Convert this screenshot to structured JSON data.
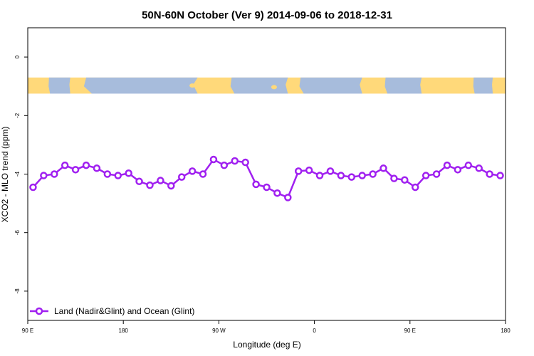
{
  "chart_data": {
    "type": "line",
    "title": "50N-60N October (Ver 9)   2014-09-06 to 2018-12-31",
    "xlabel": "Longitude (deg E)",
    "ylabel": "XCO2 - MLO trend (ppm)",
    "xlim": [
      90,
      540
    ],
    "ylim": [
      -9,
      1
    ],
    "x_ticks": [
      {
        "value": 90,
        "label": "90 E"
      },
      {
        "value": 180,
        "label": "180"
      },
      {
        "value": 270,
        "label": "90 W"
      },
      {
        "value": 360,
        "label": "0"
      },
      {
        "value": 450,
        "label": "90 E"
      },
      {
        "value": 540,
        "label": "180"
      }
    ],
    "y_ticks": [
      {
        "value": 0,
        "label": "0"
      },
      {
        "value": -2,
        "label": "-2"
      },
      {
        "value": -4,
        "label": "-4"
      },
      {
        "value": -6,
        "label": "-6"
      },
      {
        "value": -8,
        "label": "-8"
      }
    ],
    "grid": false,
    "legend_position": "bottom-left",
    "series": [
      {
        "name": "Land (Nadir&Glint) and Ocean (Glint)",
        "color": "#a020f0",
        "x": [
          95,
          105,
          115,
          125,
          135,
          145,
          155,
          165,
          175,
          185,
          195,
          205,
          215,
          225,
          235,
          245,
          255,
          265,
          275,
          285,
          295,
          305,
          315,
          325,
          335,
          345,
          355,
          365,
          375,
          385,
          395,
          405,
          415,
          425,
          435,
          445,
          455,
          465,
          475,
          485,
          495,
          505,
          515,
          525,
          535
        ],
        "y": [
          -4.45,
          -4.05,
          -4.0,
          -3.7,
          -3.85,
          -3.7,
          -3.8,
          -4.0,
          -4.05,
          -3.97,
          -4.25,
          -4.38,
          -4.22,
          -4.4,
          -4.1,
          -3.9,
          -4.0,
          -3.5,
          -3.7,
          -3.55,
          -3.6,
          -4.35,
          -4.45,
          -4.65,
          -4.8,
          -3.9,
          -3.87,
          -4.05,
          -3.9,
          -4.05,
          -4.1,
          -4.05,
          -4.0,
          -3.8,
          -4.15,
          -4.2,
          -4.45,
          -4.05,
          -4.0,
          -3.7,
          -3.85,
          -3.7,
          -3.8,
          -4.0,
          -4.05
        ]
      }
    ],
    "map_strip": {
      "y_top": -0.7,
      "y_bottom": -1.25,
      "land_color": "#ffd97a",
      "ocean_color": "#a7bcdc"
    }
  }
}
